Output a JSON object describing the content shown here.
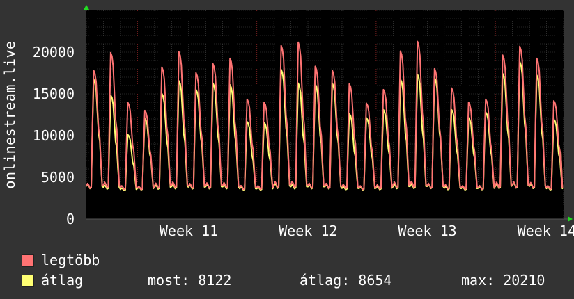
{
  "chart_data": {
    "type": "area",
    "title": "",
    "ylabel": "onlinestream.live",
    "ylim": [
      0,
      25000
    ],
    "yticks": [
      "0",
      "5000",
      "10000",
      "15000",
      "20000"
    ],
    "ytick_values": [
      0,
      5000,
      10000,
      15000,
      20000
    ],
    "xticks": [
      "Week 11",
      "Week 12",
      "Week 13",
      "Week 14"
    ],
    "grid": true,
    "days": 28,
    "series": [
      {
        "name": "legtöbb",
        "color": "#ff7373",
        "fill": false,
        "daily_peaks": [
          18400,
          20600,
          14400,
          13400,
          18800,
          20700,
          18100,
          19200,
          19900,
          14800,
          14400,
          21500,
          21900,
          18900,
          18400,
          16700,
          14300,
          16000,
          20800,
          22000,
          18600,
          16200,
          14400,
          14800,
          20300,
          21400,
          19900,
          14600
        ]
      },
      {
        "name": "átlag",
        "color": "#ffff73",
        "fill": true,
        "daily_peaks": [
          17300,
          15300,
          10400,
          12400,
          15500,
          17100,
          16000,
          16800,
          16600,
          12000,
          11900,
          18500,
          16800,
          16700,
          16800,
          13000,
          12500,
          13500,
          17300,
          17900,
          17500,
          13500,
          12500,
          13200,
          18000,
          19500,
          17800,
          12300
        ]
      }
    ],
    "daily_min": 3200,
    "last_value": 8100
  },
  "legend": {
    "max_label": "legtöbb",
    "avg_label": "átlag"
  },
  "stats": {
    "now": "most: 8122",
    "avg": "átlag: 8654",
    "max": "max: 20210"
  },
  "colors": {
    "background": "#333333",
    "plot_background": "#000000",
    "grid": "#4a4a4a",
    "week_line": "#7a2020",
    "axis_arrow": "#22dd22",
    "text": "#ffffff"
  }
}
